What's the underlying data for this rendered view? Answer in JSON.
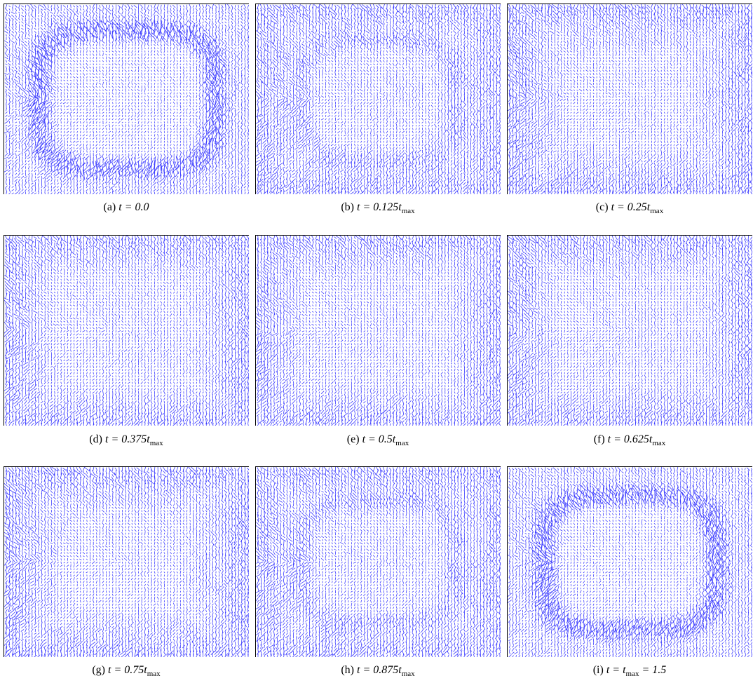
{
  "figure": {
    "panels": [
      {
        "label": "(a)",
        "caption": [
          {
            "text": "t = 0.0"
          }
        ]
      },
      {
        "label": "(b)",
        "caption": [
          {
            "text": "t = 0.125t"
          },
          {
            "sub": "max"
          }
        ]
      },
      {
        "label": "(c)",
        "caption": [
          {
            "text": "t = 0.25t"
          },
          {
            "sub": "max"
          }
        ]
      },
      {
        "label": "(d)",
        "caption": [
          {
            "text": "t = 0.375t"
          },
          {
            "sub": "max"
          }
        ]
      },
      {
        "label": "(e)",
        "caption": [
          {
            "text": "t = 0.5t"
          },
          {
            "sub": "max"
          }
        ]
      },
      {
        "label": "(f)",
        "caption": [
          {
            "text": "t = 0.625t"
          },
          {
            "sub": "max"
          }
        ]
      },
      {
        "label": "(g)",
        "caption": [
          {
            "text": "t = 0.75t"
          },
          {
            "sub": "max"
          }
        ]
      },
      {
        "label": "(h)",
        "caption": [
          {
            "text": "t = 0.875t"
          },
          {
            "sub": "max"
          }
        ]
      },
      {
        "label": "(i)",
        "caption": [
          {
            "text": "t = t"
          },
          {
            "sub": "max"
          },
          {
            "text": " = 1.5"
          }
        ]
      }
    ]
  }
}
